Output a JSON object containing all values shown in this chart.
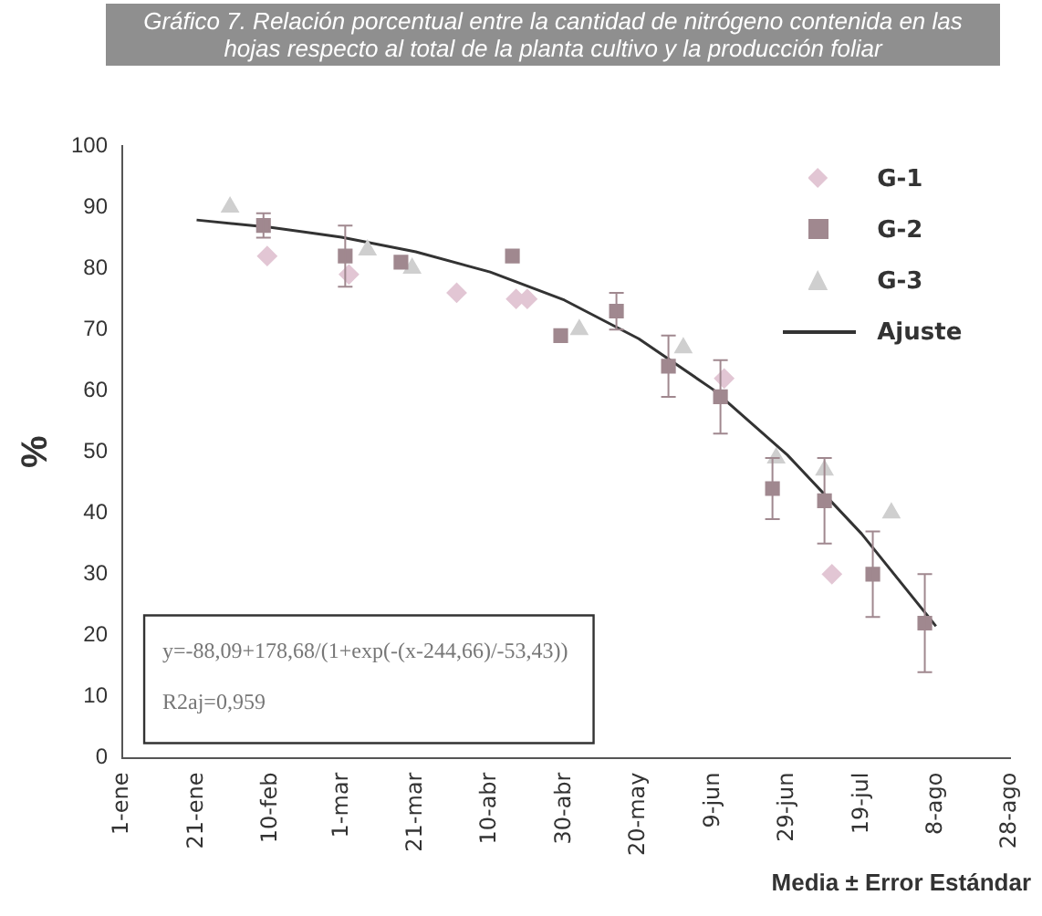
{
  "chart_data": {
    "type": "scatter",
    "title": "Gráfico 7. Relación porcentual entre la cantidad de nitrógeno contenida en las hojas respecto al total de la planta cultivo y la producción foliar",
    "ylabel": "%",
    "xlim": [
      "--01-01",
      "--08-28"
    ],
    "xticks": [
      {
        "value": "--01-01",
        "label": "1-ene"
      },
      {
        "value": "--01-21",
        "label": "21-ene"
      },
      {
        "value": "--02-10",
        "label": "10-feb"
      },
      {
        "value": "--03-01",
        "label": "1-mar"
      },
      {
        "value": "--03-21",
        "label": "21-mar"
      },
      {
        "value": "--04-10",
        "label": "10-abr"
      },
      {
        "value": "--04-30",
        "label": "30-abr"
      },
      {
        "value": "--05-20",
        "label": "20-may"
      },
      {
        "value": "--06-09",
        "label": "9-jun"
      },
      {
        "value": "--06-29",
        "label": "29-jun"
      },
      {
        "value": "--07-19",
        "label": "19-jul"
      },
      {
        "value": "--08-08",
        "label": "8-ago"
      },
      {
        "value": "--08-28",
        "label": "28-ago"
      }
    ],
    "ylim": [
      0,
      100
    ],
    "yticks": [
      0,
      10,
      20,
      30,
      40,
      50,
      60,
      70,
      80,
      90,
      100
    ],
    "legend": "top right",
    "series": [
      {
        "name": "G-1",
        "color": "#e2c6d4",
        "marker": "diamond",
        "x": [
          "--02-09",
          "--03-03",
          "--04-01",
          "--04-17",
          "--04-20",
          "--06-12",
          "--07-11"
        ],
        "values": [
          82,
          79,
          76,
          75,
          75,
          62,
          30
        ]
      },
      {
        "name": "G-2",
        "color": "#a0888f",
        "marker": "square",
        "x": [
          "--02-08",
          "--03-02",
          "--03-17",
          "--04-16",
          "--04-29",
          "--05-14",
          "--05-28",
          "--06-11",
          "--06-25",
          "--07-09",
          "--07-22",
          "--08-05"
        ],
        "values": [
          87,
          82,
          81,
          82,
          69,
          73,
          64,
          59,
          44,
          42,
          30,
          22
        ],
        "errors": [
          2,
          5,
          null,
          null,
          null,
          3,
          5,
          6,
          5,
          7,
          7,
          8
        ]
      },
      {
        "name": "G-3",
        "color": "#cfcfcf",
        "marker": "triangle",
        "x": [
          "--01-30",
          "--03-08",
          "--03-20",
          "--05-04",
          "--06-01",
          "--06-26",
          "--07-09",
          "--07-27"
        ],
        "values": [
          90,
          83,
          80,
          70,
          67,
          49,
          47,
          40
        ]
      },
      {
        "name": "Ajuste",
        "type": "line",
        "color": "#333333",
        "marker": "none",
        "x": [
          "--01-21",
          "--02-10",
          "--03-01",
          "--03-21",
          "--04-10",
          "--04-30",
          "--05-20",
          "--06-09",
          "--06-29",
          "--07-19",
          "--08-08"
        ],
        "values": [
          87.9,
          86.7,
          85.1,
          82.7,
          79.4,
          74.8,
          68.5,
          60.2,
          49.5,
          36.6,
          21.5
        ]
      }
    ],
    "annotations": [
      "y=-88,09+178,68/(1+exp(-(x-244,66)/-53,43))",
      "R2aj=0,959",
      "Media ± Error Estándar"
    ]
  }
}
